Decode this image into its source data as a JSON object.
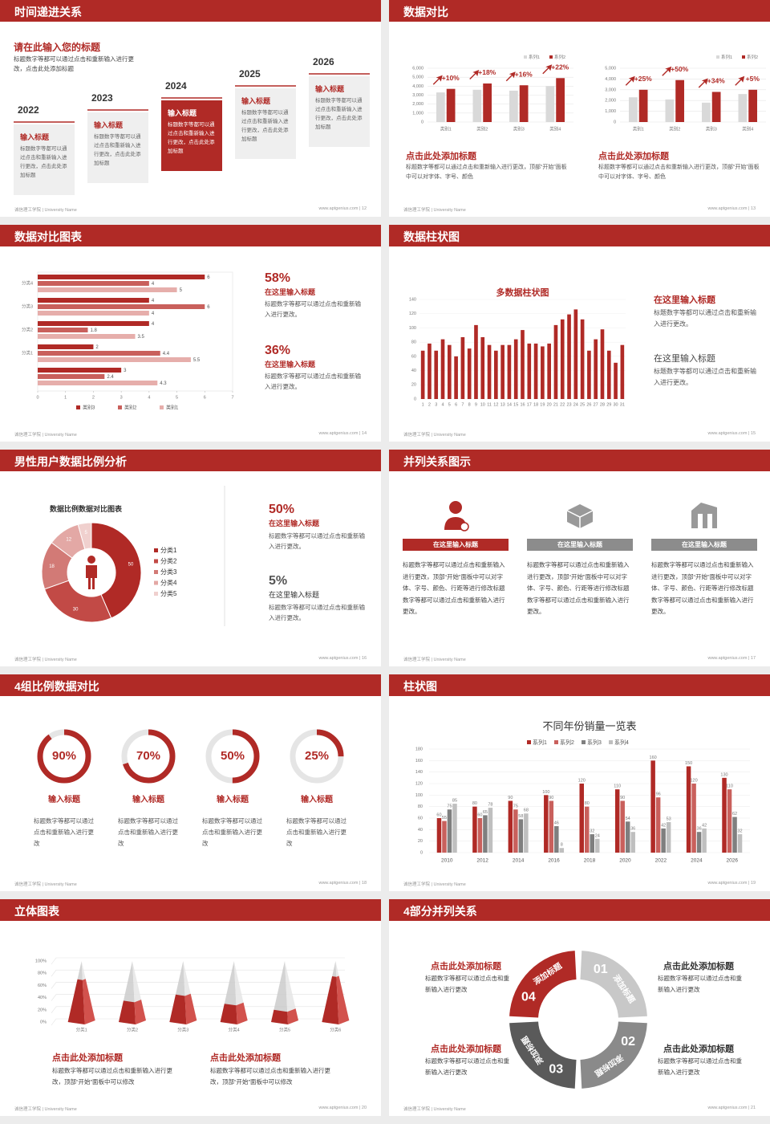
{
  "slides": [
    {
      "title": "时间递进关系",
      "heading": "请在此输入您的标题",
      "intro": "标题数字等都可以通过点击和重新输入进行更改，点击此处添加标题",
      "steps": [
        {
          "year": "2022",
          "title": "输入标题",
          "text": "标题数字等都可以通过点击和重新输入进行更改，点击此处添加标题"
        },
        {
          "year": "2023",
          "title": "输入标题",
          "text": "标题数字等都可以通过点击和重新输入进行更改，点击此处添加标题"
        },
        {
          "year": "2024",
          "title": "输入标题",
          "text": "标题数字等都可以通过点击和重新输入进行更改，点击此处添加标题"
        },
        {
          "year": "2025",
          "title": "输入标题",
          "text": "标题数字等都可以通过点击和重新输入进行更改，点击此处添加标题"
        },
        {
          "year": "2026",
          "title": "输入标题",
          "text": "标题数字等都可以通过点击和重新输入进行更改，点击此处添加标题"
        }
      ],
      "footer_left": "诚信理工学院 | University Name",
      "footer_right": "www.aptgenius.com | 12"
    },
    {
      "title": "数据对比",
      "charts": [
        {
          "type": "bar",
          "categories": [
            "类别1",
            "类别2",
            "类别3",
            "类别4"
          ],
          "series": [
            {
              "name": "系列1",
              "color": "#d9d9d9",
              "values": [
                3300,
                3600,
                3500,
                4000
              ]
            },
            {
              "name": "系列2",
              "color": "#b02a26",
              "values": [
                3700,
                4300,
                4100,
                4900
              ]
            }
          ],
          "ylim": [
            0,
            6000
          ],
          "yticks": [
            0,
            {
              "value": 1000,
              "label": "1,000"
            },
            {
              "value": 2000,
              "label": "2,000"
            },
            {
              "value": 3000,
              "label": "3,000"
            },
            {
              "value": 4000,
              "label": "4,000"
            },
            {
              "value": 5000,
              "label": "5,000"
            },
            {
              "value": 6000,
              "label": "6,000"
            }
          ],
          "annotations": [
            "+10%",
            "+18%",
            "+16%",
            "+22%"
          ],
          "heading": "点击此处添加标题",
          "text": "标题数字等都可以通过点击和重新输入进行更改，顶部“开始”面板中可以对字体、字号、颜色"
        },
        {
          "type": "bar",
          "categories": [
            "类别1",
            "类别2",
            "类别3",
            "类别4"
          ],
          "series": [
            {
              "name": "系列1",
              "color": "#d9d9d9",
              "values": [
                2300,
                2100,
                1800,
                2600
              ]
            },
            {
              "name": "系列2",
              "color": "#b02a26",
              "values": [
                3000,
                3900,
                2800,
                3000
              ]
            }
          ],
          "ylim": [
            0,
            5000
          ],
          "yticks": [
            0,
            {
              "value": 1000,
              "label": "1,000"
            },
            {
              "value": 2000,
              "label": "2,000"
            },
            {
              "value": 3000,
              "label": "3,000"
            },
            {
              "value": 4000,
              "label": "4,000"
            },
            {
              "value": 5000,
              "label": "5,000"
            }
          ],
          "annotations": [
            "+25%",
            "+50%",
            "+34%",
            "+5%"
          ],
          "heading": "点击此处添加标题",
          "text": "标题数字等都可以通过点击和重新输入进行更改，顶部“开始”面板中可以对字体、字号、颜色"
        }
      ],
      "footer_left": "诚信理工学院 | University Name",
      "footer_right": "www.aptgenius.com | 13"
    },
    {
      "title": "数据对比图表",
      "chart": {
        "type": "hbar",
        "categories": [
          "分类4",
          "分类3",
          "分类2",
          "分类1",
          null
        ],
        "series": [
          {
            "name": "类别3",
            "color": "#b02a26",
            "values": [
              6,
              4,
              4,
              2,
              3
            ]
          },
          {
            "name": "类别2",
            "color": "#c9605c",
            "values": [
              4,
              6,
              1.8,
              4.4,
              2.4
            ]
          },
          {
            "name": "类别1",
            "color": "#e6aeab",
            "values": [
              5,
              4,
              3.5,
              5.5,
              4.3
            ]
          }
        ],
        "xlim": [
          0,
          7
        ],
        "xticks": [
          0,
          1,
          2,
          3,
          4,
          5,
          6,
          7
        ]
      },
      "stats": [
        {
          "value": "58%",
          "title": "在这里输入标题",
          "text": "标题数字等都可以通过点击和重新输入进行更改。"
        },
        {
          "value": "36%",
          "title": "在这里输入标题",
          "text": "标题数字等都可以通过点击和重新输入进行更改。"
        }
      ],
      "footer_left": "诚信理工学院 | University Name",
      "footer_right": "www.aptgenius.com | 14"
    },
    {
      "title": "数据柱状图",
      "chart": {
        "type": "bar",
        "title": "多数据柱状图",
        "categories": [
          "1",
          "2",
          "3",
          "4",
          "5",
          "6",
          "7",
          "8",
          "9",
          "10",
          "11",
          "12",
          "13",
          "14",
          "15",
          "16",
          "17",
          "18",
          "19",
          "20",
          "21",
          "22",
          "23",
          "24",
          "25",
          "26",
          "27",
          "28",
          "29",
          "30",
          "31"
        ],
        "values": [
          68,
          78,
          68,
          84,
          76,
          60,
          87,
          71,
          104,
          87,
          76,
          68,
          76,
          76,
          84,
          97,
          78,
          78,
          74,
          78,
          104,
          112,
          119,
          126,
          112,
          68,
          84,
          98,
          68,
          51,
          76
        ],
        "color": "#b02a26",
        "ylim": [
          0,
          140
        ],
        "yticks": [
          0,
          20,
          40,
          60,
          80,
          100,
          120,
          140
        ]
      },
      "notes": [
        {
          "title": "在这里输入标题",
          "text": "标题数字等都可以通过点击和重新输入进行更改。"
        },
        {
          "title": "在这里输入标题",
          "text": "标题数字等都可以通过点击和重新输入进行更改。"
        }
      ],
      "footer_left": "诚信理工学院 | University Name",
      "footer_right": "www.aptgenius.com | 15"
    },
    {
      "title": "男性用户数据比例分析",
      "chart": {
        "type": "pie",
        "title": "数据比例数据对比图表",
        "categories": [
          "分类1",
          "分类2",
          "分类3",
          "分类4",
          "分类5"
        ],
        "values": [
          50,
          30,
          18,
          12,
          5
        ],
        "colors": [
          "#b02a26",
          "#c24a46",
          "#d27a76",
          "#e3a8a5",
          "#f0d0ce"
        ]
      },
      "stats": [
        {
          "value": "50%",
          "title": "在这里输入标题",
          "text": "标题数字等都可以通过点击和重新输入进行更改。"
        },
        {
          "value": "5%",
          "title": "在这里输入标题",
          "text": "标题数字等都可以通过点击和重新输入进行更改。"
        }
      ],
      "footer_left": "诚信理工学院 | University Name",
      "footer_right": "www.aptgenius.com | 16"
    },
    {
      "title": "并列关系图示",
      "items": [
        {
          "title": "在这里输入标题",
          "text": "标题数字等都可以通过点击和重新输入进行更改，顶部“开始”面板中可以对字体、字号、颜色、行距等进行修改标题数字等都可以通过点击和重新输入进行更改。"
        },
        {
          "title": "在这里输入标题",
          "text": "标题数字等都可以通过点击和重新输入进行更改，顶部“开始”面板中可以对字体、字号、颜色、行距等进行修改标题数字等都可以通过点击和重新输入进行更改。"
        },
        {
          "title": "在这里输入标题",
          "text": "标题数字等都可以通过点击和重新输入进行更改，顶部“开始”面板中可以对字体、字号、颜色、行距等进行修改标题数字等都可以通过点击和重新输入进行更改。"
        }
      ],
      "footer_left": "诚信理工学院 | University Name",
      "footer_right": "www.aptgenius.com | 17"
    },
    {
      "title": "4组比例数据对比",
      "chart": {
        "type": "gauge",
        "values": [
          90,
          70,
          50,
          25
        ],
        "value_labels": [
          "90%",
          "70%",
          "50%",
          "25%"
        ],
        "ylim": [
          0,
          100
        ],
        "color": "#b02a26"
      },
      "items": [
        {
          "title": "输入标题",
          "text": "标题数字等都可以通过点击和重新输入进行更改"
        },
        {
          "title": "输入标题",
          "text": "标题数字等都可以通过点击和重新输入进行更改"
        },
        {
          "title": "输入标题",
          "text": "标题数字等都可以通过点击和重新输入进行更改"
        },
        {
          "title": "输入标题",
          "text": "标题数字等都可以通过点击和重新输入进行更改"
        }
      ],
      "footer_left": "诚信理工学院 | University Name",
      "footer_right": "www.aptgenius.com | 18"
    },
    {
      "title": "柱状图",
      "chart": {
        "type": "bar",
        "title": "不同年份销量一览表",
        "categories": [
          "2010",
          "2012",
          "2014",
          "2016",
          "2018",
          "2020",
          "2022",
          "2024",
          "2026"
        ],
        "series": [
          {
            "name": "系列1",
            "color": "#b02a26",
            "values": [
              60,
              80,
              90,
              100,
              120,
              110,
              160,
              150,
              130
            ]
          },
          {
            "name": "系列2",
            "color": "#c9605c",
            "values": [
              55,
              60,
              75,
              90,
              80,
              90,
              96,
              120,
              110
            ]
          },
          {
            "name": "系列3",
            "color": "#7f7f7f",
            "values": [
              75,
              65,
              58,
              46,
              32,
              54,
              42,
              36,
              62
            ]
          },
          {
            "name": "系列4",
            "color": "#bfbfbf",
            "values": [
              85,
              78,
              68,
              8,
              24,
              36,
              53,
              42,
              32
            ]
          }
        ],
        "ylim": [
          0,
          180
        ],
        "yticks": [
          0,
          20,
          40,
          60,
          80,
          100,
          120,
          140,
          160,
          180
        ]
      },
      "footer_left": "诚信理工学院 | University Name",
      "footer_right": "www.aptgenius.com | 19"
    },
    {
      "title": "立体图表",
      "chart": {
        "type": "pyramid",
        "categories": [
          "分类1",
          "分类2",
          "分类3",
          "分类4",
          "分类5",
          "分类6"
        ],
        "values": [
          70,
          35,
          45,
          30,
          20,
          75
        ],
        "ylim": [
          0,
          100
        ],
        "yticks": [
          {
            "value": 0,
            "label": "0%"
          },
          {
            "value": 20,
            "label": "20%"
          },
          {
            "value": 40,
            "label": "40%"
          },
          {
            "value": 60,
            "label": "60%"
          },
          {
            "value": 80,
            "label": "80%"
          },
          {
            "value": 100,
            "label": "100%"
          }
        ]
      },
      "notes": [
        {
          "title": "点击此处添加标题",
          "text": "标题数字等都可以通过点击和重新输入进行更改，顶部“开始”面板中可以修改"
        },
        {
          "title": "点击此处添加标题",
          "text": "标题数字等都可以通过点击和重新输入进行更改，顶部“开始”面板中可以修改"
        }
      ],
      "footer_left": "诚信理工学院 | University Name",
      "footer_right": "www.aptgenius.com | 20"
    },
    {
      "title": "4部分并列关系",
      "segments": [
        {
          "number": "01",
          "label": "添加标题"
        },
        {
          "number": "02",
          "label": "添加标题"
        },
        {
          "number": "03",
          "label": "添加标题"
        },
        {
          "number": "04",
          "label": "添加标题"
        }
      ],
      "notes": [
        {
          "title": "点击此处添加标题",
          "text": "标题数字等都可以通过点击和重新输入进行更改"
        },
        {
          "title": "点击此处添加标题",
          "text": "标题数字等都可以通过点击和重新输入进行更改"
        },
        {
          "title": "点击此处添加标题",
          "text": "标题数字等都可以通过点击和重新输入进行更改"
        },
        {
          "title": "点击此处添加标题",
          "text": "标题数字等都可以通过点击和重新输入进行更改"
        }
      ],
      "footer_left": "诚信理工学院 | University Name",
      "footer_right": "www.aptgenius.com | 21"
    }
  ]
}
